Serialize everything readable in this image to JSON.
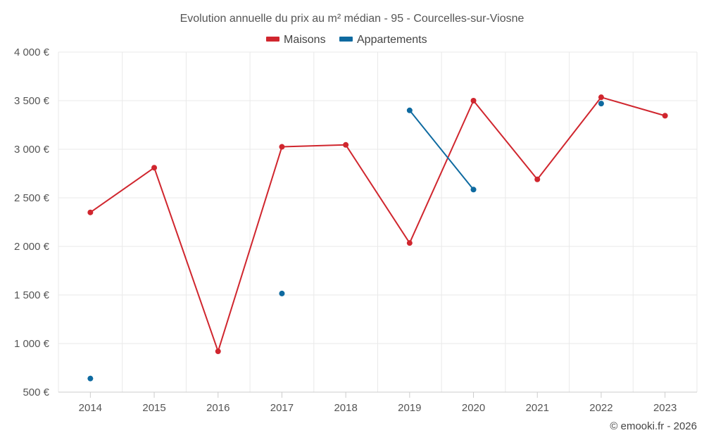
{
  "chart_data": {
    "type": "line",
    "title": "Evolution annuelle du prix au m² médian - 95 - Courcelles-sur-Viosne",
    "categories": [
      "2014",
      "2015",
      "2016",
      "2017",
      "2018",
      "2019",
      "2020",
      "2021",
      "2022",
      "2023"
    ],
    "series": [
      {
        "name": "Maisons",
        "color": "#d0262e",
        "values": [
          2350,
          2810,
          920,
          3025,
          3045,
          2035,
          3500,
          2690,
          3535,
          3345
        ]
      },
      {
        "name": "Appartements",
        "color": "#0e6aa0",
        "values": [
          640,
          null,
          null,
          1515,
          null,
          3400,
          2585,
          null,
          3470,
          null
        ]
      }
    ],
    "ylim": [
      500,
      4000
    ],
    "yticks": [
      500,
      1000,
      1500,
      2000,
      2500,
      3000,
      3500,
      4000
    ],
    "ytick_labels": [
      "500 €",
      "1 000 €",
      "1 500 €",
      "2 000 €",
      "2 500 €",
      "3 000 €",
      "3 500 €",
      "4 000 €"
    ],
    "xlabel": "",
    "ylabel": "",
    "grid": true,
    "legend_position": "top-center"
  },
  "credit": "© emooki.fr - 2026"
}
